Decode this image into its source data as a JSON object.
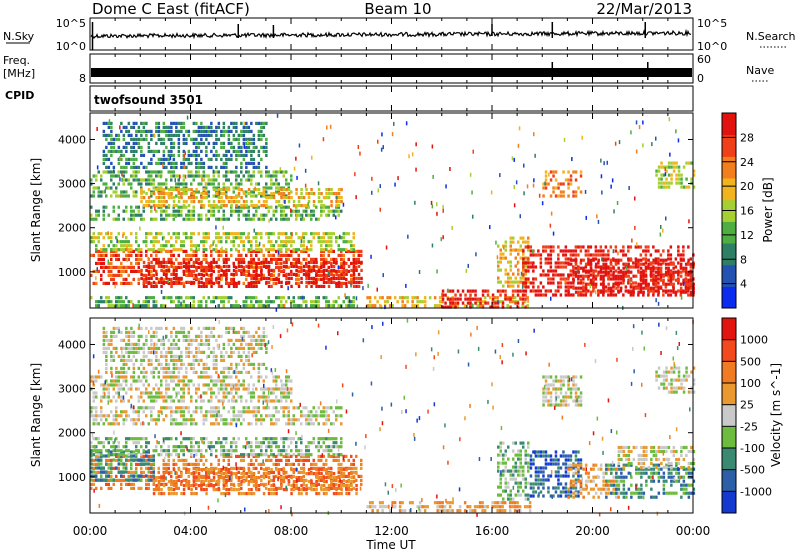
{
  "header": {
    "radar": "Dome C East (fitACF)",
    "beam": "Beam 10",
    "date": "22/Mar/2013"
  },
  "nsky_panel": {
    "left_label": "N.Sky",
    "left_ticks": [
      "10^5",
      "10^0"
    ],
    "right_label": "N.Search",
    "right_ticks": [
      "10^5",
      "10^0"
    ]
  },
  "freq_panel": {
    "left_label_line1": "Freq.",
    "left_label_line2": "[MHz]",
    "left_ticks": [
      "8"
    ],
    "right_label": "Nave",
    "right_ticks": [
      "60",
      "0"
    ]
  },
  "cpid_panel": {
    "label": "CPID",
    "program": "twofsound 3501"
  },
  "chart_data": [
    {
      "type": "heatmap",
      "parameter": "power",
      "ylabel": "Slant Range [km]",
      "y_ticks": [
        1000,
        2000,
        3000,
        4000
      ],
      "ylim": [
        180,
        4600
      ],
      "xlim_hours": [
        0,
        24
      ],
      "colorbar": {
        "label": "Power [dB]",
        "ticks": [
          4,
          8,
          12,
          16,
          20,
          24,
          28
        ],
        "range": [
          0,
          32
        ],
        "colors": [
          "#0b2cf0",
          "#2452b2",
          "#2f7f66",
          "#4fae41",
          "#a6cf32",
          "#f1b41f",
          "#f27f1c",
          "#f0401a",
          "#e2130f"
        ]
      },
      "structures": [
        {
          "t": [
            0.0,
            10.8
          ],
          "r": [
            700,
            1500
          ],
          "level": 7
        },
        {
          "t": [
            2.0,
            10.8
          ],
          "r": [
            650,
            1250
          ],
          "level": 8
        },
        {
          "t": [
            0.0,
            10.5
          ],
          "r": [
            1500,
            1900
          ],
          "level": 4
        },
        {
          "t": [
            0.0,
            10.0
          ],
          "r": [
            2200,
            2500
          ],
          "level": 3
        },
        {
          "t": [
            0.0,
            8.0
          ],
          "r": [
            2700,
            3300
          ],
          "level": 3
        },
        {
          "t": [
            2.0,
            10.0
          ],
          "r": [
            2500,
            2900
          ],
          "level": 5
        },
        {
          "t": [
            0.5,
            7.0
          ],
          "r": [
            3400,
            4400
          ],
          "level": 2
        },
        {
          "t": [
            11.0,
            17.5
          ],
          "r": [
            200,
            450
          ],
          "level": 5
        },
        {
          "t": [
            14.0,
            17.3
          ],
          "r": [
            230,
            600
          ],
          "level": 8
        },
        {
          "t": [
            16.2,
            17.4
          ],
          "r": [
            700,
            1800
          ],
          "level": 5
        },
        {
          "t": [
            17.2,
            24.0
          ],
          "r": [
            500,
            1600
          ],
          "level": 8
        },
        {
          "t": [
            19.0,
            24.0
          ],
          "r": [
            500,
            1300
          ],
          "level": 8
        },
        {
          "t": [
            18.0,
            19.5
          ],
          "r": [
            2700,
            3300
          ],
          "level": 6
        },
        {
          "t": [
            22.5,
            24.0
          ],
          "r": [
            2900,
            3500
          ],
          "level": 4
        },
        {
          "t": [
            0.0,
            10.5
          ],
          "r": [
            190,
            450
          ],
          "level": 3
        }
      ]
    },
    {
      "type": "heatmap",
      "parameter": "velocity",
      "ylabel": "Slant Range [km]",
      "y_ticks": [
        1000,
        2000,
        3000,
        4000
      ],
      "ylim": [
        180,
        4600
      ],
      "xlim_hours": [
        0,
        24
      ],
      "colorbar": {
        "label": "Velocity [m s^-1]",
        "tick_labels": [
          "1000",
          "500",
          "100",
          "25",
          "-25",
          "-100",
          "-500",
          "-1000"
        ],
        "colors": [
          "#1439d0",
          "#2d5fa9",
          "#3a8a72",
          "#6dbb3f",
          "#c9c9c9",
          "#e9992f",
          "#f07b22",
          "#f24a1d",
          "#e31410"
        ]
      },
      "structures": [
        {
          "t": [
            0.0,
            10.8
          ],
          "r": [
            700,
            1500
          ],
          "level": 6
        },
        {
          "t": [
            2.5,
            10.6
          ],
          "r": [
            650,
            1200
          ],
          "level": 6
        },
        {
          "t": [
            0.0,
            2.5
          ],
          "r": [
            900,
            1600
          ],
          "level": 2
        },
        {
          "t": [
            0.0,
            10.0
          ],
          "r": [
            1500,
            1900
          ],
          "level": 3
        },
        {
          "t": [
            0.0,
            10.0
          ],
          "r": [
            2200,
            2600
          ],
          "level": 4
        },
        {
          "t": [
            0.0,
            8.0
          ],
          "r": [
            2700,
            3300
          ],
          "level": 4
        },
        {
          "t": [
            0.5,
            7.0
          ],
          "r": [
            3400,
            4400
          ],
          "level": 4
        },
        {
          "t": [
            11.0,
            17.5
          ],
          "r": [
            200,
            450
          ],
          "level": 5
        },
        {
          "t": [
            16.2,
            17.4
          ],
          "r": [
            500,
            1800
          ],
          "level": 3
        },
        {
          "t": [
            17.5,
            19.5
          ],
          "r": [
            600,
            1600
          ],
          "level": 1
        },
        {
          "t": [
            19.0,
            21.0
          ],
          "r": [
            500,
            1300
          ],
          "level": 5
        },
        {
          "t": [
            20.5,
            24.0
          ],
          "r": [
            500,
            1300
          ],
          "level": 2
        },
        {
          "t": [
            21.0,
            24.0
          ],
          "r": [
            1200,
            1700
          ],
          "level": 4
        },
        {
          "t": [
            18.0,
            19.5
          ],
          "r": [
            2600,
            3300
          ],
          "level": 4
        },
        {
          "t": [
            22.5,
            24.0
          ],
          "r": [
            2900,
            3500
          ],
          "level": 4
        }
      ]
    }
  ],
  "x_axis": {
    "tick_labels": [
      "00:00",
      "04:00",
      "08:00",
      "12:00",
      "16:00",
      "20:00",
      "00:00"
    ],
    "label": "Time UT"
  }
}
